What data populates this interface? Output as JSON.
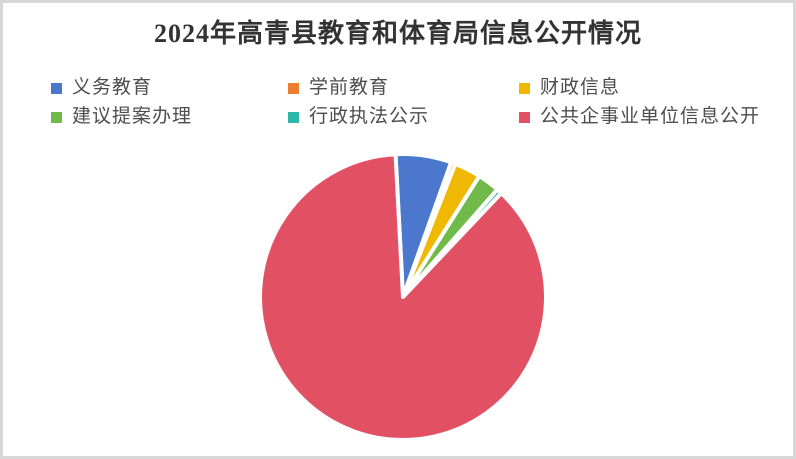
{
  "chart_data": {
    "type": "pie",
    "title": "2024年高青县教育和体育局信息公开情况",
    "legend_position": "top-left, two rows of three",
    "start_angle_deg": -3,
    "values_unit": "percent (estimated from slice arc angles; no numeric labels shown in image)",
    "labels": [
      "义务教育",
      "学前教育",
      "财政信息",
      "建议提案办理",
      "行政执法公示",
      "公共企事业单位信息公开"
    ],
    "values": [
      6.3,
      0.5,
      3.0,
      2.5,
      0.6,
      87.1
    ],
    "colors": [
      "#4B77CC",
      "#ED7D31",
      "#F0B800",
      "#6FBA49",
      "#2BB8A8",
      "#E25163"
    ],
    "slice_border_color": "#FFFFFF",
    "background_color": "#FFFFFF",
    "frame_color": "#D7D7D7",
    "title_color": "#333333",
    "legend_text_color": "#4D4D4D"
  }
}
